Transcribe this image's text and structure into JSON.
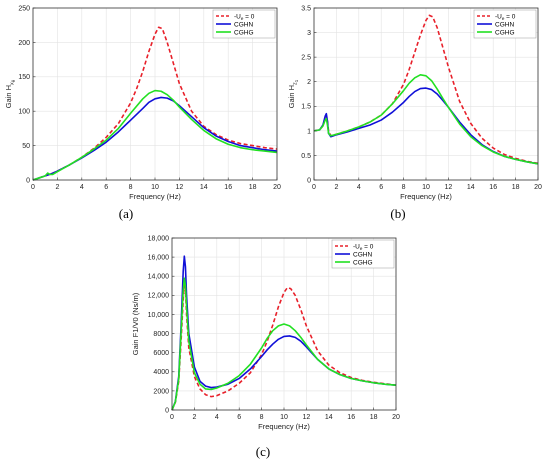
{
  "colors": {
    "red": "#e8202a",
    "blue": "#1010d8",
    "green": "#22e022"
  },
  "chart_data": [
    {
      "type": "line",
      "panel_label": "(a)",
      "ylabel": "Gain H",
      "ylabel_sub": "x",
      "ylabel_sub_prefix": "θ",
      "xlabel": "Frequency (Hz)",
      "xlim": [
        0,
        20
      ],
      "ylim": [
        0,
        250
      ],
      "xticks": [
        0,
        2,
        4,
        6,
        8,
        10,
        12,
        14,
        16,
        18,
        20
      ],
      "yticks": [
        0,
        50,
        100,
        150,
        200,
        250
      ],
      "ytick_labels": [
        "0",
        "50",
        "100",
        "150",
        "200",
        "250"
      ],
      "grid": true,
      "legend": "top-right",
      "series": [
        {
          "name": "-U",
          "name_sub": "e",
          "name_suffix": " = 0",
          "color": "red",
          "dash": true,
          "x": [
            0,
            0.5,
            1,
            1.5,
            2,
            3,
            4,
            5,
            6,
            7,
            8,
            8.5,
            9,
            9.5,
            10,
            10.3,
            10.6,
            11,
            11.5,
            12,
            13,
            14,
            15,
            16,
            17,
            18,
            19,
            20
          ],
          "y": [
            0,
            3,
            6,
            9,
            13,
            22,
            33,
            46,
            62,
            82,
            112,
            133,
            158,
            187,
            212,
            222,
            220,
            200,
            170,
            140,
            100,
            78,
            66,
            58,
            53,
            50,
            47,
            45
          ]
        },
        {
          "name": "CGHN",
          "color": "blue",
          "dash": false,
          "x": [
            0,
            0.5,
            1,
            1.5,
            2,
            3,
            4,
            5,
            6,
            7,
            8,
            9,
            9.5,
            10,
            10.5,
            11,
            11.5,
            12,
            13,
            14,
            15,
            16,
            17,
            18,
            19,
            20
          ],
          "y": [
            0,
            3,
            6,
            9,
            13,
            22,
            32,
            43,
            55,
            70,
            87,
            104,
            113,
            118,
            120,
            119,
            115,
            108,
            92,
            76,
            64,
            56,
            50,
            47,
            44,
            42
          ]
        },
        {
          "name": "CGHG",
          "color": "green",
          "dash": false,
          "x": [
            0,
            0.5,
            1,
            1.2,
            1.4,
            1.6,
            2,
            3,
            4,
            5,
            6,
            7,
            8,
            9,
            9.5,
            10,
            10.5,
            11,
            11.5,
            12,
            13,
            14,
            15,
            16,
            17,
            18,
            19,
            20
          ],
          "y": [
            0,
            3,
            6,
            10,
            8,
            8,
            12,
            22,
            33,
            45,
            58,
            75,
            97,
            118,
            126,
            130,
            129,
            124,
            116,
            106,
            88,
            72,
            60,
            52,
            47,
            44,
            42,
            40
          ]
        }
      ]
    },
    {
      "type": "line",
      "panel_label": "(b)",
      "ylabel": "Gain H",
      "ylabel_sub": "z",
      "ylabel_sub_prefix": "1",
      "xlabel": "Frequency (Hz)",
      "xlim": [
        0,
        20
      ],
      "ylim": [
        0,
        3.5
      ],
      "xticks": [
        0,
        2,
        4,
        6,
        8,
        10,
        12,
        14,
        16,
        18,
        20
      ],
      "yticks": [
        0,
        0.5,
        1,
        1.5,
        2,
        2.5,
        3,
        3.5
      ],
      "ytick_labels": [
        "0",
        "0.5",
        "1",
        "1.5",
        "2",
        "2.5",
        "3",
        "3.5"
      ],
      "grid": true,
      "legend": "top-right",
      "series": [
        {
          "name": "-U",
          "name_sub": "e",
          "name_suffix": " = 0",
          "color": "red",
          "dash": true,
          "x": [
            0,
            0.5,
            0.8,
            1,
            1.1,
            1.2,
            1.3,
            1.5,
            2,
            3,
            4,
            5,
            6,
            7,
            8,
            8.5,
            9,
            9.5,
            10,
            10.3,
            10.6,
            11,
            11.5,
            12,
            13,
            14,
            15,
            16,
            17,
            18,
            19,
            20
          ],
          "y": [
            1,
            1.02,
            1.1,
            1.25,
            1.3,
            1.2,
            1.0,
            0.9,
            0.93,
            1.0,
            1.08,
            1.18,
            1.32,
            1.55,
            1.95,
            2.25,
            2.6,
            2.95,
            3.25,
            3.35,
            3.32,
            3.1,
            2.7,
            2.3,
            1.6,
            1.15,
            0.85,
            0.65,
            0.52,
            0.44,
            0.38,
            0.34
          ]
        },
        {
          "name": "CGHN",
          "color": "blue",
          "dash": false,
          "x": [
            0,
            0.5,
            0.8,
            1,
            1.1,
            1.2,
            1.3,
            1.5,
            2,
            3,
            4,
            5,
            6,
            7,
            8,
            8.5,
            9,
            9.5,
            10,
            10.5,
            11,
            11.5,
            12,
            13,
            14,
            15,
            16,
            17,
            18,
            19,
            20
          ],
          "y": [
            1,
            1.02,
            1.12,
            1.3,
            1.35,
            1.2,
            0.95,
            0.88,
            0.92,
            0.98,
            1.05,
            1.12,
            1.22,
            1.38,
            1.58,
            1.7,
            1.8,
            1.86,
            1.87,
            1.84,
            1.75,
            1.62,
            1.48,
            1.18,
            0.92,
            0.72,
            0.58,
            0.48,
            0.42,
            0.37,
            0.33
          ]
        },
        {
          "name": "CGHG",
          "color": "green",
          "dash": false,
          "x": [
            0,
            0.5,
            0.8,
            1,
            1.1,
            1.2,
            1.3,
            1.5,
            2,
            3,
            4,
            5,
            6,
            7,
            8,
            8.5,
            9,
            9.5,
            10,
            10.5,
            11,
            11.5,
            12,
            13,
            14,
            15,
            16,
            17,
            18,
            19,
            20
          ],
          "y": [
            1,
            1.02,
            1.1,
            1.22,
            1.25,
            1.12,
            0.95,
            0.9,
            0.93,
            1.0,
            1.08,
            1.18,
            1.32,
            1.55,
            1.82,
            1.97,
            2.08,
            2.14,
            2.12,
            2.02,
            1.85,
            1.66,
            1.48,
            1.14,
            0.88,
            0.7,
            0.57,
            0.48,
            0.42,
            0.37,
            0.33
          ]
        }
      ]
    },
    {
      "type": "line",
      "panel_label": "(c)",
      "ylabel": "Gain F1/V0 (Ns/m)",
      "xlabel": "Frequency (Hz)",
      "xlim": [
        0,
        20
      ],
      "ylim": [
        0,
        18000
      ],
      "xticks": [
        0,
        2,
        4,
        6,
        8,
        10,
        12,
        14,
        16,
        18,
        20
      ],
      "yticks": [
        0,
        2000,
        4000,
        6000,
        8000,
        10000,
        12000,
        14000,
        16000,
        18000
      ],
      "ytick_labels": [
        "0",
        "2000",
        "4000",
        "6000",
        "8000",
        "10,000",
        "12,000",
        "14,000",
        "16,000",
        "18,000"
      ],
      "grid": true,
      "legend": "top-right",
      "series": [
        {
          "name": "-U",
          "name_sub": "e",
          "name_suffix": " = 0",
          "color": "red",
          "dash": true,
          "x": [
            0,
            0.3,
            0.6,
            0.8,
            1,
            1.1,
            1.2,
            1.3,
            1.5,
            2,
            2.5,
            3,
            3.5,
            4,
            5,
            6,
            7,
            8,
            8.5,
            9,
            9.5,
            10,
            10.3,
            10.6,
            11,
            11.5,
            12,
            13,
            14,
            15,
            16,
            17,
            18,
            19,
            20
          ],
          "y": [
            0,
            800,
            3000,
            7000,
            11500,
            13200,
            12500,
            10000,
            6500,
            3500,
            2200,
            1600,
            1400,
            1500,
            2000,
            2800,
            3900,
            5800,
            7200,
            8900,
            10800,
            12300,
            12800,
            12700,
            12000,
            10500,
            8800,
            6200,
            4700,
            3900,
            3400,
            3100,
            2900,
            2750,
            2600
          ]
        },
        {
          "name": "CGHN",
          "color": "blue",
          "dash": false,
          "x": [
            0,
            0.3,
            0.6,
            0.8,
            1,
            1.1,
            1.2,
            1.3,
            1.5,
            2,
            2.5,
            3,
            3.5,
            4,
            5,
            6,
            7,
            8,
            8.5,
            9,
            9.5,
            10,
            10.5,
            11,
            11.5,
            12,
            13,
            14,
            15,
            16,
            17,
            18,
            19,
            20
          ],
          "y": [
            0,
            900,
            3500,
            8500,
            14500,
            16100,
            15000,
            12000,
            8000,
            4500,
            3000,
            2500,
            2350,
            2400,
            2700,
            3300,
            4300,
            5600,
            6300,
            6900,
            7400,
            7700,
            7750,
            7600,
            7200,
            6600,
            5300,
            4300,
            3700,
            3300,
            3050,
            2850,
            2700,
            2600
          ]
        },
        {
          "name": "CGHG",
          "color": "green",
          "dash": false,
          "x": [
            0,
            0.3,
            0.6,
            0.8,
            1,
            1.1,
            1.2,
            1.3,
            1.5,
            2,
            2.5,
            3,
            3.5,
            4,
            5,
            6,
            7,
            8,
            8.5,
            9,
            9.5,
            10,
            10.5,
            11,
            11.5,
            12,
            13,
            14,
            15,
            16,
            17,
            18,
            19,
            20
          ],
          "y": [
            0,
            850,
            3200,
            7800,
            12500,
            13800,
            13000,
            10800,
            7200,
            3900,
            2700,
            2200,
            2150,
            2300,
            2800,
            3600,
            4800,
            6500,
            7500,
            8300,
            8800,
            9000,
            8800,
            8300,
            7600,
            6800,
            5300,
            4300,
            3700,
            3300,
            3050,
            2850,
            2700,
            2600
          ]
        }
      ]
    }
  ]
}
